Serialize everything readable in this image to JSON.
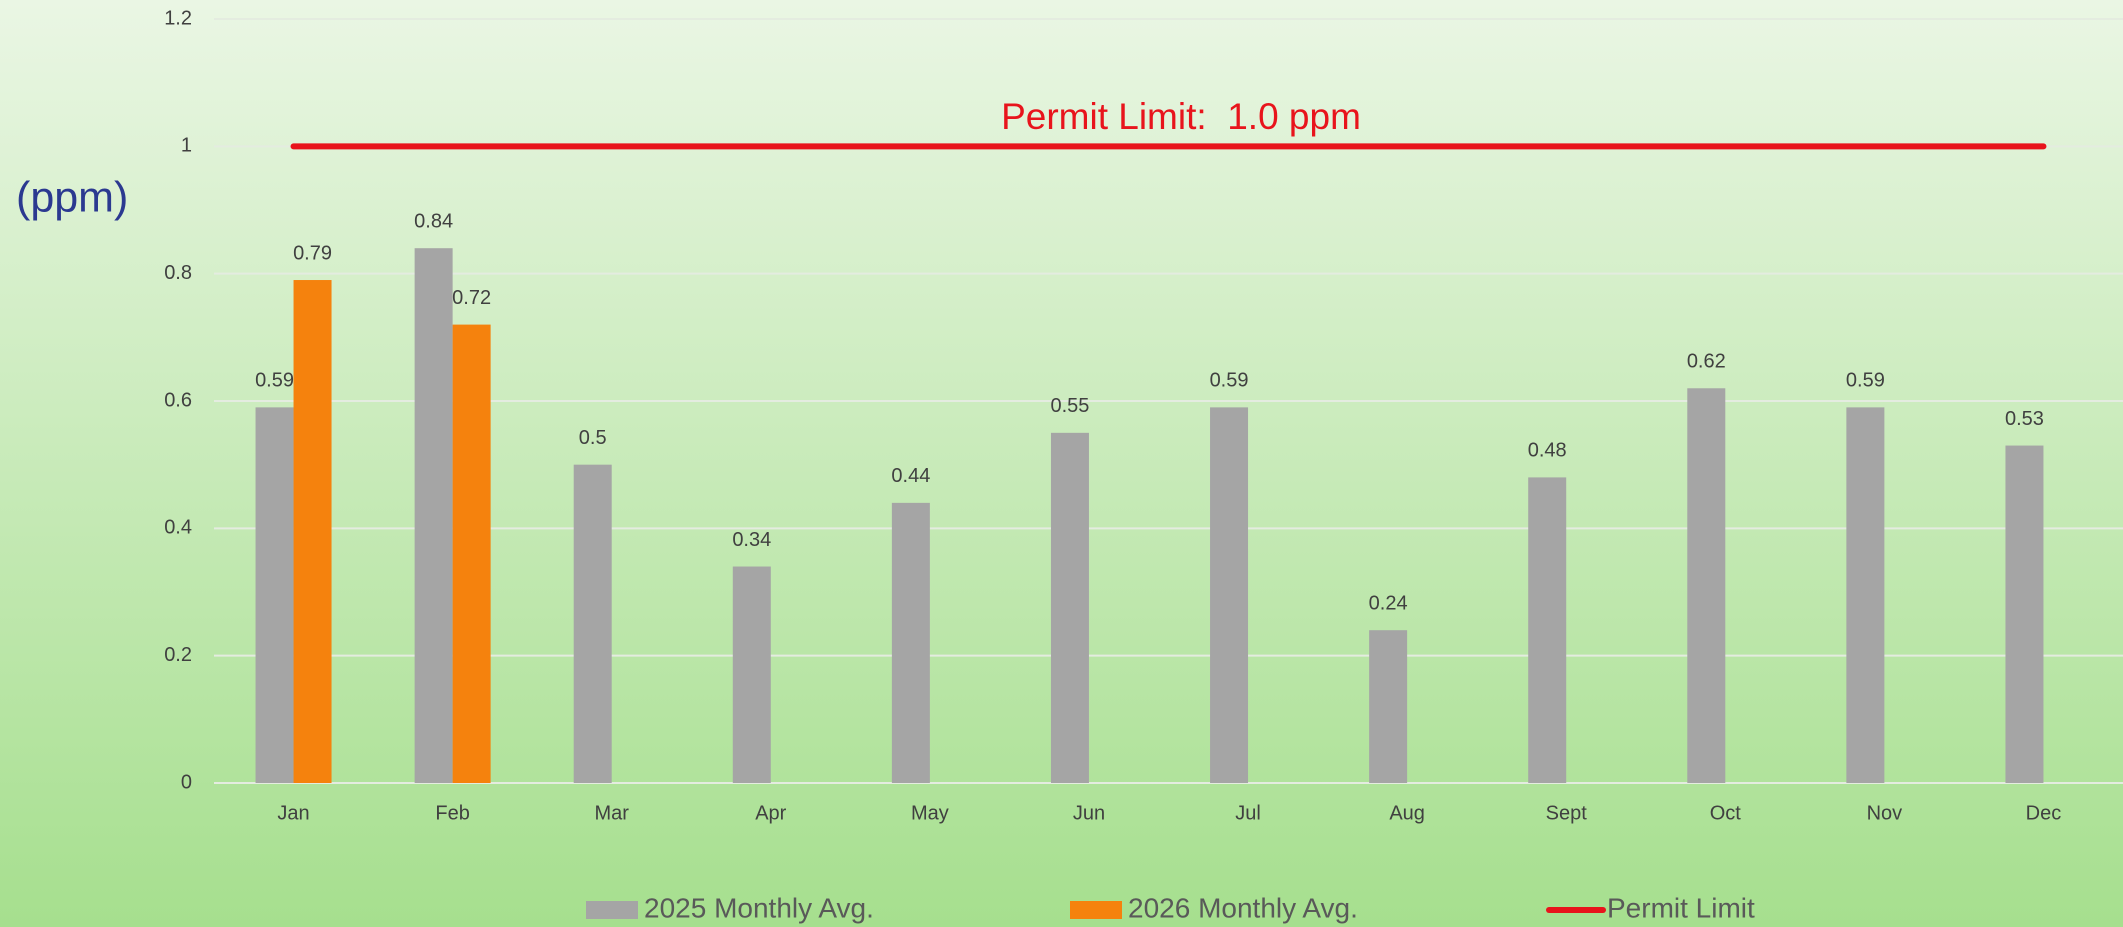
{
  "chart_data": {
    "type": "bar",
    "annotation": "Permit Limit:  1.0 ppm",
    "y_label": "(ppm)",
    "categories": [
      "Jan",
      "Feb",
      "Mar",
      "Apr",
      "May",
      "Jun",
      "Jul",
      "Aug",
      "Sept",
      "Oct",
      "Nov",
      "Dec"
    ],
    "series": [
      {
        "name": "2025 Monthly Avg.",
        "color": "#a5a5a5",
        "values": [
          0.59,
          0.84,
          0.5,
          0.34,
          0.44,
          0.55,
          0.59,
          0.24,
          0.48,
          0.62,
          0.59,
          0.53
        ]
      },
      {
        "name": "2026 Monthly Avg.",
        "color": "#f5820d",
        "values": [
          0.79,
          0.72,
          null,
          null,
          null,
          null,
          null,
          null,
          null,
          null,
          null,
          null
        ]
      },
      {
        "name": "Permit Limit",
        "color": "#e8141c",
        "type": "line",
        "values": [
          1,
          1,
          1,
          1,
          1,
          1,
          1,
          1,
          1,
          1,
          1,
          1
        ]
      }
    ],
    "ylim": [
      0,
      1.2
    ],
    "yticks": [
      0,
      0.2,
      0.4,
      0.6,
      0.8,
      1,
      1.2
    ],
    "grid": true,
    "legend": "bottom"
  }
}
